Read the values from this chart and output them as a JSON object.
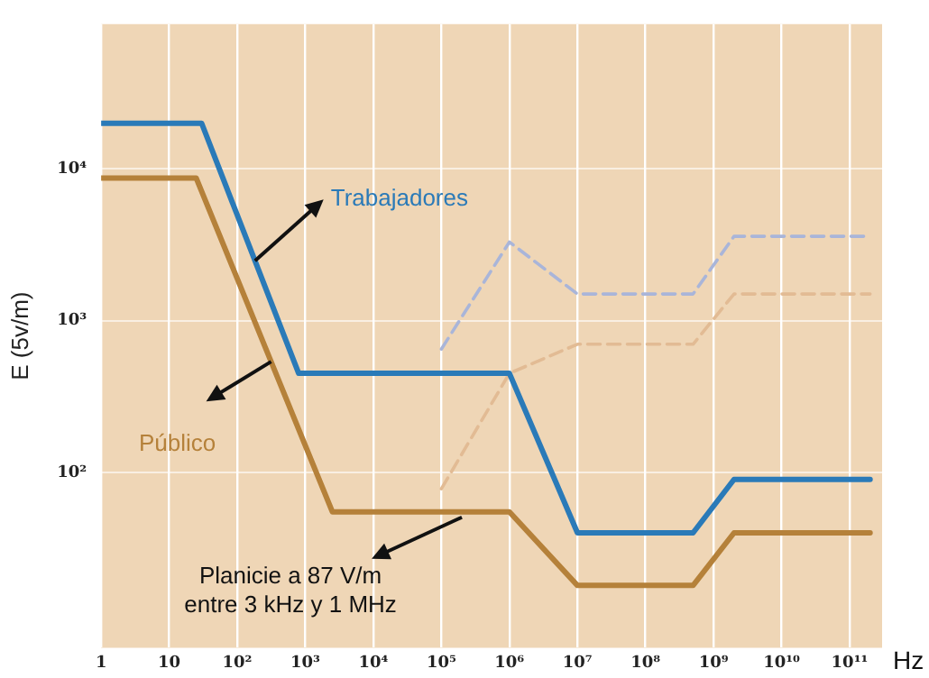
{
  "chart_data": {
    "type": "line",
    "ylabel": "E (5v/m)",
    "xlabel": "Hz",
    "log": "xy",
    "grid": true,
    "legend": false,
    "xlim": [
      1,
      300000000000
    ],
    "ylim": [
      7,
      90000
    ],
    "xticks": [
      1,
      10,
      {
        "value": 100,
        "label": "10²"
      },
      {
        "value": 1000,
        "label": "10³"
      },
      {
        "value": 10000,
        "label": "10⁴"
      },
      {
        "value": 100000,
        "label": "10⁵"
      },
      {
        "value": 1000000,
        "label": "10⁶"
      },
      {
        "value": 10000000,
        "label": "10⁷"
      },
      {
        "value": 100000000,
        "label": "10⁸"
      },
      {
        "value": 1000000000,
        "label": "10⁹"
      },
      {
        "value": 10000000000,
        "label": "10¹⁰"
      },
      {
        "value": 100000000000,
        "label": "10¹¹"
      }
    ],
    "yticks": [
      {
        "value": 100,
        "label": "10²"
      },
      {
        "value": 1000,
        "label": "10³"
      },
      {
        "value": 10000,
        "label": "10⁴"
      }
    ],
    "annotations": [
      {
        "text": "Planicie a 87 V/m\nentre 3 kHz y 1 MHz",
        "x": 200000,
        "y": 55
      }
    ],
    "series": [
      {
        "name": "Trabajadores",
        "color": "#2a7ab8",
        "x": [
          1,
          30,
          800,
          1000000,
          10000000,
          500000000,
          2000000000,
          200000000000
        ],
        "values": [
          20000,
          20000,
          450,
          450,
          40,
          40,
          90,
          90
        ]
      },
      {
        "name": "Público",
        "color": "#b5813a",
        "x": [
          1,
          25,
          2500,
          1000000,
          10000000,
          500000000,
          2000000000,
          200000000000
        ],
        "values": [
          8700,
          8700,
          55,
          55,
          18,
          18,
          40,
          40
        ]
      },
      {
        "color": "#a9b5d9",
        "line_style": "dashed",
        "x": [
          100000,
          1000000,
          10000000,
          500000000,
          2000000000,
          200000000000
        ],
        "values": [
          650,
          3300,
          1500,
          1500,
          3600,
          3600
        ]
      },
      {
        "color": "#e2bb94",
        "line_style": "dashed",
        "x": [
          100000,
          1000000,
          10000000,
          500000000,
          2000000000,
          200000000000
        ],
        "values": [
          78,
          450,
          700,
          700,
          1500,
          1500
        ]
      }
    ]
  }
}
